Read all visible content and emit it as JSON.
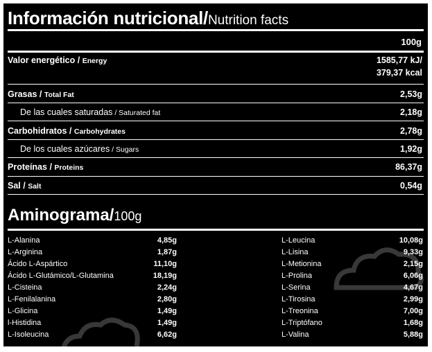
{
  "header": {
    "title_es": "Información nutricional/",
    "title_en": "Nutrition facts",
    "column": "100g"
  },
  "nutrition": [
    {
      "es": "Valor energético",
      "sep": " / ",
      "en": "Energy",
      "value": "1585,77 kJ/",
      "value2": "379,37 kcal",
      "sub": false
    },
    {
      "es": "Grasas",
      "sep": " / ",
      "en": "Total Fat",
      "value": "2,53g",
      "sub": false
    },
    {
      "es": "De las cuales saturadas",
      "sep": " / ",
      "en": "Saturated fat",
      "value": "2,18g",
      "sub": true
    },
    {
      "es": "Carbohidratos",
      "sep": " / ",
      "en": "Carbohydrates",
      "value": "2,78g",
      "sub": false
    },
    {
      "es": "De los cuales azúcares",
      "sep": " / ",
      "en": "Sugars",
      "value": "1,92g",
      "sub": true
    },
    {
      "es": "Proteínas",
      "sep": " / ",
      "en": "Proteins",
      "value": "86,37g",
      "sub": false
    },
    {
      "es": "Sal",
      "sep": " / ",
      "en": "Salt",
      "value": "0,54g",
      "sub": false
    }
  ],
  "aminogram": {
    "title": "Aminograma/",
    "unit": "100g",
    "left": [
      {
        "name": "L-Alanina",
        "value": "4,85g"
      },
      {
        "name": "L-Arginina",
        "value": "1,87g"
      },
      {
        "name": "Ácido L-Aspártico",
        "value": "11,10g"
      },
      {
        "name": "Ácido L-Glutámico/L-Glutamina",
        "value": "18,19g"
      },
      {
        "name": "L-Cisteina",
        "value": "2,24g"
      },
      {
        "name": "L-Fenilalanina",
        "value": "2,80g"
      },
      {
        "name": "L-Glicina",
        "value": "1,49g"
      },
      {
        "name": "l-Histidina",
        "value": "1,49g"
      },
      {
        "name": "L-Isoleucina",
        "value": "6,62g"
      }
    ],
    "right": [
      {
        "name": "L-Leucina",
        "value": "10,08g"
      },
      {
        "name": "L-Lisina",
        "value": "9,33g"
      },
      {
        "name": "L-Metionina",
        "value": "2,15g"
      },
      {
        "name": "L-Prolina",
        "value": "6,06g"
      },
      {
        "name": "L-Serina",
        "value": "4,67g"
      },
      {
        "name": "L-Tirosina",
        "value": "2,99g"
      },
      {
        "name": "L-Treonina",
        "value": "7,00g"
      },
      {
        "name": "L-Triptófano",
        "value": "1,68g"
      },
      {
        "name": "L-Valina",
        "value": "5,88g"
      }
    ]
  },
  "colors": {
    "background": "#000000",
    "text": "#ffffff",
    "page": "#ffffff"
  }
}
